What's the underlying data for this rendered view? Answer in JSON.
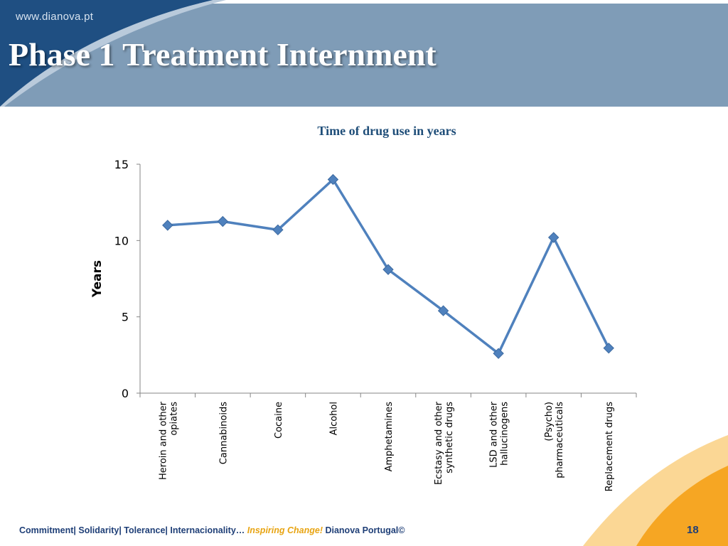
{
  "header": {
    "url": "www.dianova.pt",
    "title": "Phase 1 Treatment Internment",
    "colors": {
      "band": "#7f9cb7",
      "dark": "#1f4f82"
    }
  },
  "footer": {
    "values": "Commitment| Solidarity| Tolerance| Internacionality… ",
    "tagline": "Inspiring Change!",
    "brand": " Dianova Portugal©",
    "page_number": "18",
    "colors": {
      "text": "#1f3f77",
      "accent": "#e8a412"
    }
  },
  "chart_data": {
    "type": "line",
    "title": "Time of  drug use in years",
    "xlabel": "",
    "ylabel": "Years",
    "categories": [
      [
        "Heroin and other",
        "opiates"
      ],
      [
        "Cannabinoids"
      ],
      [
        "Cocaine"
      ],
      [
        "Alcohol"
      ],
      [
        "Amphetamines"
      ],
      [
        "Ecstasy and other",
        "synthetic drugs"
      ],
      [
        "LSD and other",
        "hallucinogens"
      ],
      [
        "(Psycho)",
        "pharmaceuticals"
      ],
      [
        "Replacement drugs"
      ]
    ],
    "values": [
      11.0,
      11.25,
      10.7,
      14.0,
      8.1,
      5.4,
      2.6,
      10.2,
      2.95
    ],
    "ylim": [
      0,
      15
    ],
    "yticks": [
      0,
      5,
      10,
      15
    ],
    "grid": false,
    "legend": "none",
    "color": "#4f81bd"
  }
}
